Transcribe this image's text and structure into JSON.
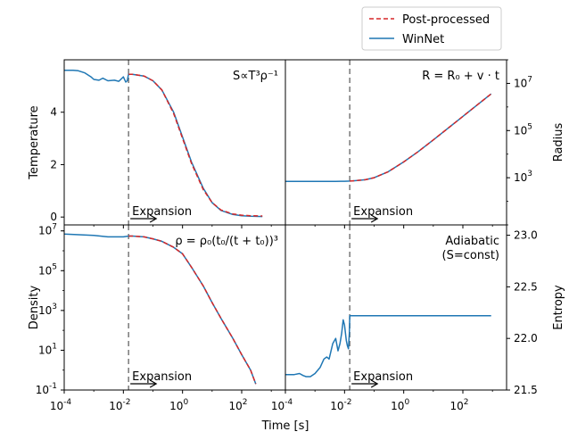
{
  "figure": {
    "xlabel": "Time [s]",
    "legend": [
      {
        "label": "Post-processed",
        "color": "#d62728",
        "style": "dashed"
      },
      {
        "label": "WinNet",
        "color": "#1f77b4",
        "style": "solid"
      }
    ]
  },
  "chart_data": [
    {
      "type": "line",
      "xscale": "log",
      "yscale": "linear",
      "xlim": [
        0.0001,
        3000
      ],
      "ylim": [
        -0.3,
        6.0
      ],
      "ylabel": "Temperature",
      "yaxis_side": "left",
      "yticks": [
        0,
        2,
        4
      ],
      "yticklabels": [
        "0",
        "2",
        "4"
      ],
      "annotation": "S∝T³ρ⁻¹",
      "annotation_pos": "top-right",
      "expansion_label": "Expansion",
      "vline_x": 0.015,
      "series": [
        {
          "name": "WinNet",
          "x": [
            0.0001,
            0.0002,
            0.0003,
            0.0005,
            0.0008,
            0.001,
            0.0015,
            0.002,
            0.003,
            0.005,
            0.007,
            0.01,
            0.012,
            0.0135,
            0.0145,
            0.015,
            0.02,
            0.05,
            0.1,
            0.2,
            0.5,
            1,
            2,
            5,
            10,
            20,
            50,
            100,
            200,
            500
          ],
          "y": [
            5.6,
            5.6,
            5.58,
            5.5,
            5.35,
            5.25,
            5.22,
            5.3,
            5.2,
            5.22,
            5.18,
            5.35,
            5.15,
            5.2,
            5.38,
            5.45,
            5.45,
            5.38,
            5.2,
            4.85,
            4.0,
            3.05,
            2.1,
            1.1,
            0.55,
            0.25,
            0.1,
            0.05,
            0.03,
            0.02
          ]
        },
        {
          "name": "Post-processed",
          "x": [
            0.015,
            0.02,
            0.05,
            0.1,
            0.2,
            0.5,
            1,
            2,
            5,
            10,
            20,
            50,
            100,
            200,
            500
          ],
          "y": [
            5.45,
            5.45,
            5.38,
            5.2,
            4.85,
            3.95,
            3.0,
            2.05,
            1.05,
            0.55,
            0.27,
            0.12,
            0.07,
            0.05,
            0.04
          ]
        }
      ]
    },
    {
      "type": "line",
      "xscale": "log",
      "yscale": "log",
      "xlim": [
        0.0001,
        3000
      ],
      "ylim": [
        10,
        100000000
      ],
      "ylabel": "Radius",
      "yaxis_side": "right",
      "yticks": [
        1000,
        100000,
        10000000
      ],
      "yticklabels": [
        "10^3",
        "10^5",
        "10^7"
      ],
      "annotation": "R = R₀ + v · t",
      "annotation_pos": "top-right",
      "expansion_label": "Expansion",
      "vline_x": 0.015,
      "series": [
        {
          "name": "WinNet",
          "x": [
            0.0001,
            0.001,
            0.005,
            0.01,
            0.015,
            0.02,
            0.05,
            0.1,
            0.3,
            1,
            3,
            10,
            30,
            100,
            300,
            900
          ],
          "y": [
            700,
            700,
            700,
            710,
            720,
            740,
            820,
            1000,
            1800,
            4700,
            12500,
            40000,
            120000,
            400000,
            1200000,
            3600000
          ]
        },
        {
          "name": "Post-processed",
          "x": [
            0.015,
            0.02,
            0.05,
            0.1,
            0.3,
            1,
            3,
            10,
            30,
            100,
            300,
            900
          ],
          "y": [
            720,
            740,
            820,
            1000,
            1800,
            4700,
            12500,
            40000,
            120000,
            400000,
            1200000,
            3600000
          ]
        }
      ]
    },
    {
      "type": "line",
      "xscale": "log",
      "yscale": "log",
      "xlim": [
        0.0001,
        3000
      ],
      "ylim": [
        0.1,
        20000000
      ],
      "ylabel": "Density",
      "yaxis_side": "left",
      "yticks": [
        0.1,
        10,
        1000,
        100000,
        10000000
      ],
      "yticklabels": [
        "10^-1",
        "10^1",
        "10^3",
        "10^5",
        "10^7"
      ],
      "annotation": "ρ = ρ₀(t₀/(t + t₀))³",
      "annotation_pos": "top-right",
      "expansion_label": "Expansion",
      "vline_x": 0.015,
      "series": [
        {
          "name": "WinNet",
          "x": [
            0.0001,
            0.001,
            0.003,
            0.01,
            0.015,
            0.02,
            0.05,
            0.1,
            0.2,
            0.5,
            1,
            2,
            5,
            10,
            20,
            50,
            100,
            200,
            300
          ],
          "y": [
            7000000,
            6000000,
            5000000,
            5000000,
            5500000,
            5500000,
            5000000,
            4000000,
            3000000,
            1500000,
            700000,
            150000,
            17000,
            2500,
            400,
            40,
            6,
            1,
            0.2
          ]
        },
        {
          "name": "Post-processed",
          "x": [
            0.015,
            0.02,
            0.05,
            0.1,
            0.2,
            0.5,
            1,
            2,
            5,
            10,
            20,
            50,
            100,
            200,
            300
          ],
          "y": [
            5500000,
            5500000,
            5000000,
            4000000,
            3000000,
            1500000,
            700000,
            150000,
            17000,
            2500,
            400,
            40,
            6,
            1,
            0.2
          ]
        }
      ]
    },
    {
      "type": "line",
      "xscale": "log",
      "yscale": "linear",
      "xlim": [
        0.0001,
        3000
      ],
      "ylim": [
        21.5,
        23.1
      ],
      "ylabel": "Entropy",
      "yaxis_side": "right",
      "yticks": [
        21.5,
        22.0,
        22.5,
        23.0
      ],
      "yticklabels": [
        "21.5",
        "22.0",
        "22.5",
        "23.0"
      ],
      "annotation": "Adiabatic\n(S=const)",
      "annotation_pos": "top-right",
      "expansion_label": "Expansion",
      "vline_x": 0.015,
      "series": [
        {
          "name": "WinNet",
          "x": [
            0.0001,
            0.0002,
            0.0003,
            0.0004,
            0.0005,
            0.0007,
            0.001,
            0.0015,
            0.002,
            0.0025,
            0.003,
            0.004,
            0.005,
            0.006,
            0.007,
            0.008,
            0.009,
            0.01,
            0.0115,
            0.0125,
            0.0135,
            0.0145,
            0.015,
            0.02,
            0.05,
            0.1,
            1,
            10,
            100,
            900
          ],
          "y": [
            21.65,
            21.65,
            21.66,
            21.64,
            21.63,
            21.63,
            21.66,
            21.72,
            21.8,
            21.82,
            21.8,
            21.95,
            22.0,
            21.88,
            21.95,
            22.05,
            22.18,
            22.13,
            21.98,
            21.93,
            21.9,
            22.05,
            22.22,
            22.22,
            22.22,
            22.22,
            22.22,
            22.22,
            22.22,
            22.22
          ]
        }
      ]
    }
  ]
}
